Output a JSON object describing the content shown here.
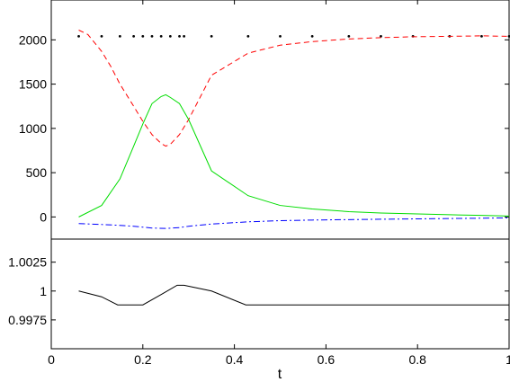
{
  "chart_data": [
    {
      "type": "line",
      "xlim": [
        0,
        1
      ],
      "ylim": [
        -250,
        2450
      ],
      "y_ticks": [
        0,
        500,
        1000,
        1500,
        2000
      ],
      "y_tick_labels": [
        "0",
        "500",
        "1000",
        "1500",
        "2000"
      ],
      "grid": false,
      "legend": "none",
      "series": [
        {
          "style": "dotted",
          "color": "#000000",
          "markers_only": true,
          "x": [
            0.06,
            0.11,
            0.15,
            0.18,
            0.2,
            0.22,
            0.24,
            0.26,
            0.28,
            0.29,
            0.35,
            0.43,
            0.5,
            0.57,
            0.65,
            0.72,
            0.79,
            0.87,
            0.94,
            1.0
          ],
          "y": [
            2040,
            2040,
            2040,
            2040,
            2040,
            2040,
            2040,
            2040,
            2040,
            2040,
            2040,
            2040,
            2040,
            2040,
            2040,
            2040,
            2040,
            2040,
            2040,
            2040
          ]
        },
        {
          "style": "dashed",
          "color": "#ff0000",
          "x": [
            0.06,
            0.08,
            0.11,
            0.13,
            0.15,
            0.18,
            0.2,
            0.22,
            0.24,
            0.25,
            0.26,
            0.28,
            0.3,
            0.35,
            0.43,
            0.5,
            0.57,
            0.65,
            0.72,
            0.79,
            0.87,
            0.94,
            1.0
          ],
          "y": [
            2110,
            2060,
            1870,
            1700,
            1500,
            1250,
            1080,
            930,
            830,
            800,
            820,
            930,
            1100,
            1600,
            1850,
            1940,
            1980,
            2010,
            2025,
            2035,
            2040,
            2045,
            2040
          ]
        },
        {
          "style": "solid",
          "color": "#00dd00",
          "x": [
            0.06,
            0.11,
            0.15,
            0.18,
            0.2,
            0.22,
            0.24,
            0.25,
            0.26,
            0.28,
            0.3,
            0.35,
            0.43,
            0.5,
            0.57,
            0.65,
            0.72,
            0.79,
            0.87,
            0.94,
            1.0
          ],
          "y": [
            0,
            130,
            430,
            800,
            1050,
            1280,
            1360,
            1380,
            1350,
            1280,
            1100,
            520,
            240,
            130,
            90,
            60,
            45,
            35,
            25,
            18,
            10
          ]
        },
        {
          "style": "dashdot",
          "color": "#0000ff",
          "x": [
            0.06,
            0.11,
            0.15,
            0.18,
            0.2,
            0.22,
            0.25,
            0.28,
            0.3,
            0.35,
            0.43,
            0.5,
            0.57,
            0.65,
            0.72,
            0.79,
            0.87,
            0.94,
            1.0
          ],
          "y": [
            -75,
            -85,
            -95,
            -105,
            -115,
            -125,
            -130,
            -120,
            -105,
            -80,
            -55,
            -42,
            -35,
            -30,
            -26,
            -22,
            -18,
            -14,
            -10
          ]
        }
      ]
    },
    {
      "type": "line",
      "xlim": [
        0,
        1
      ],
      "ylim": [
        0.995,
        1.0045
      ],
      "y_ticks": [
        0.9975,
        1,
        1.0025
      ],
      "y_tick_labels": [
        "0.9975",
        "1",
        "1.0025"
      ],
      "x_ticks": [
        0,
        0.2,
        0.4,
        0.6,
        0.8,
        1
      ],
      "x_tick_labels": [
        "0",
        "0.2",
        "0.4",
        "0.6",
        "0.8",
        "1"
      ],
      "xlabel": "t",
      "grid": false,
      "legend": "none",
      "series": [
        {
          "style": "solid",
          "color": "#000000",
          "x": [
            0.06,
            0.11,
            0.145,
            0.2,
            0.24,
            0.275,
            0.29,
            0.35,
            0.425,
            1.0
          ],
          "y": [
            1.0,
            0.9995,
            0.9988,
            0.9988,
            0.9997,
            1.0005,
            1.0005,
            1.0,
            0.9988,
            0.9988
          ]
        }
      ]
    }
  ]
}
